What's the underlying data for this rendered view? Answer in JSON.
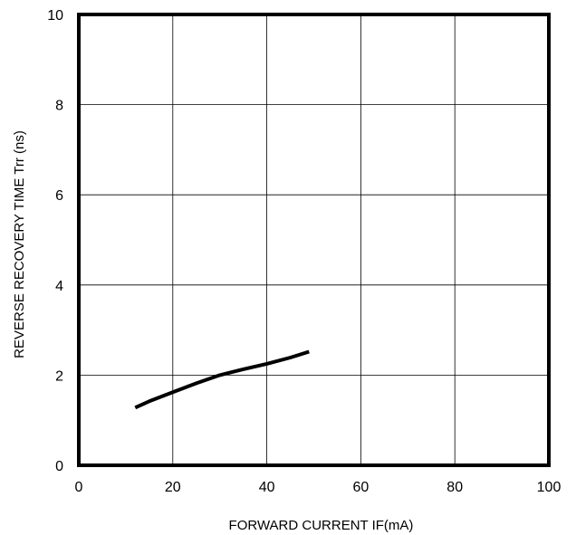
{
  "chart_data": {
    "type": "line",
    "title": "",
    "xlabel": "FORWARD CURRENT  IF(mA)",
    "ylabel": "REVERSE RECOVERY TIME  Trr (ns)",
    "xlim": [
      0,
      100
    ],
    "ylim": [
      0,
      10
    ],
    "x_ticks": [
      "0",
      "20",
      "40",
      "60",
      "80",
      "100"
    ],
    "y_ticks": [
      "0",
      "2",
      "4",
      "6",
      "8",
      "10"
    ],
    "grid": true,
    "legend": "none",
    "series": [
      {
        "color": "#000000",
        "x": [
          12,
          15,
          20,
          25,
          30,
          35,
          40,
          45,
          49
        ],
        "y": [
          1.28,
          1.42,
          1.62,
          1.82,
          2.0,
          2.13,
          2.25,
          2.39,
          2.52
        ]
      }
    ]
  }
}
